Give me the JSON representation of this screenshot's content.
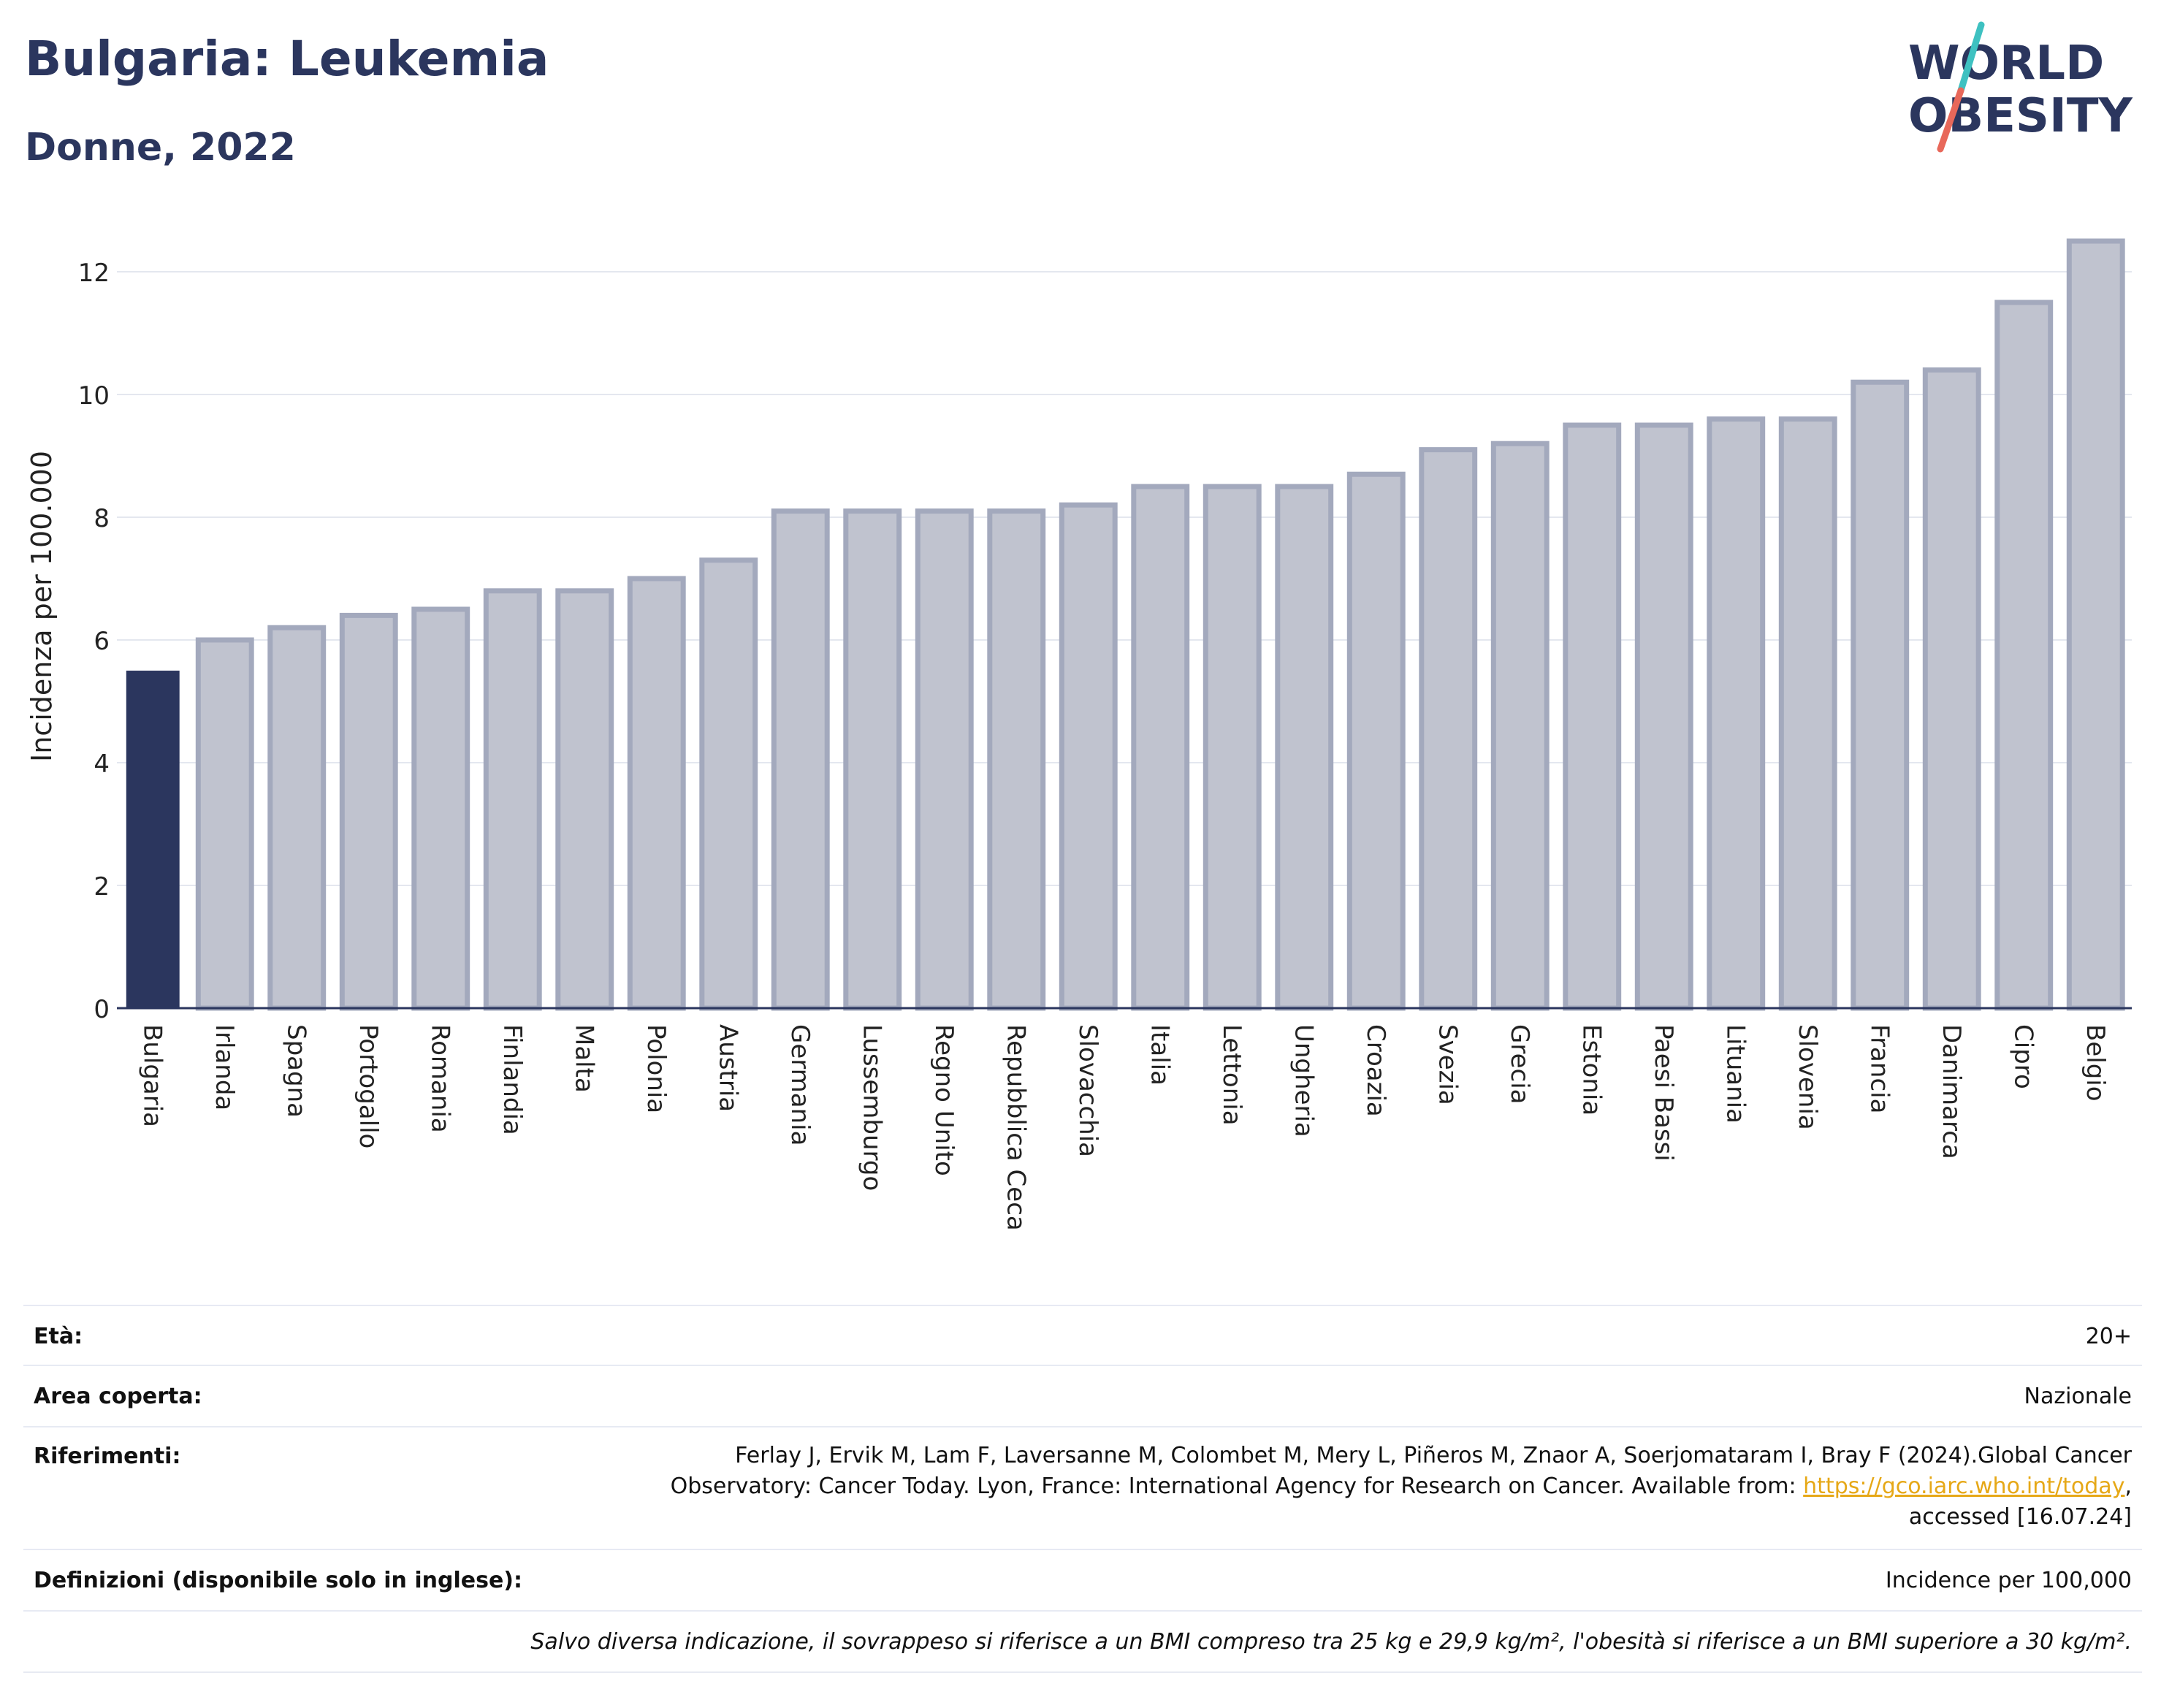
{
  "header": {
    "title": "Bulgaria: Leukemia",
    "subtitle": "Donne, 2022"
  },
  "logo": {
    "line1": "WORLD",
    "line2": "OBESITY",
    "colors": {
      "text": "#2b365e",
      "slash_top": "#3ec1c1",
      "slash_bottom": "#e8685a"
    }
  },
  "chart_data": {
    "type": "bar",
    "title": "Bulgaria: Leukemia",
    "subtitle": "Donne, 2022",
    "ylabel": "Incidenza per 100.000",
    "xlabel": "",
    "ylim": [
      0,
      13
    ],
    "yticks": [
      0,
      2,
      4,
      6,
      8,
      10,
      12
    ],
    "grid": true,
    "highlight_category": "Bulgaria",
    "colors": {
      "highlight": "#2b365e",
      "default_fill": "#c0c3cf",
      "default_stroke": "#a3a9bd"
    },
    "categories": [
      "Bulgaria",
      "Irlanda",
      "Spagna",
      "Portogallo",
      "Romania",
      "Finlandia",
      "Malta",
      "Polonia",
      "Austria",
      "Germania",
      "Lussemburgo",
      "Regno Unito",
      "Repubblica Ceca",
      "Slovacchia",
      "Italia",
      "Lettonia",
      "Ungheria",
      "Croazia",
      "Svezia",
      "Grecia",
      "Estonia",
      "Paesi Bassi",
      "Lituania",
      "Slovenia",
      "Francia",
      "Danimarca",
      "Cipro",
      "Belgio"
    ],
    "values": [
      5.5,
      6.0,
      6.2,
      6.4,
      6.5,
      6.8,
      6.8,
      7.0,
      7.3,
      8.1,
      8.1,
      8.1,
      8.1,
      8.2,
      8.5,
      8.5,
      8.5,
      8.7,
      9.1,
      9.2,
      9.5,
      9.5,
      9.6,
      9.6,
      10.2,
      10.4,
      11.5,
      12.5
    ]
  },
  "info": {
    "age_label": "Età:",
    "age_value": "20+",
    "area_label": "Area coperta:",
    "area_value": "Nazionale",
    "ref_label": "Riferimenti:",
    "ref_line1": "Ferlay J, Ervik M, Lam F, Laversanne M, Colombet M, Mery L, Piñeros M, Znaor A, Soerjomataram I, Bray F (2024).Global Cancer",
    "ref_line2_pre": "Observatory: Cancer Today. Lyon, France: International Agency for Research on Cancer. Available from: ",
    "ref_link": "https://gco.iarc.who.int/today",
    "ref_line2_post": ",",
    "ref_line3": "accessed [16.07.24]",
    "def_label": "Definizioni (disponibile solo in inglese):",
    "def_value": "Incidence per 100,000",
    "note": "Salvo diversa indicazione, il sovrappeso si riferisce a un BMI compreso tra 25 kg e 29,9 kg/m², l'obesità si riferisce a un BMI superiore a 30 kg/m²."
  }
}
